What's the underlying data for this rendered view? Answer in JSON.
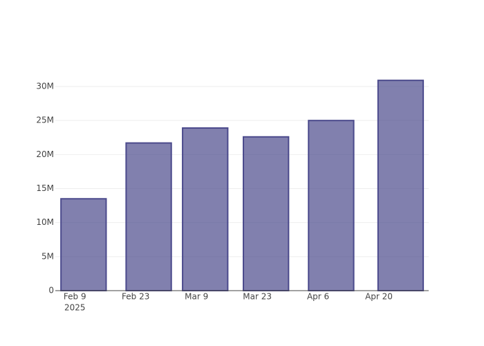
{
  "chart_data": {
    "type": "bar",
    "x": [
      "2025-02-11",
      "2025-02-26",
      "2025-03-11",
      "2025-03-25",
      "2025-04-09",
      "2025-04-25"
    ],
    "values": [
      13500000,
      21700000,
      23900000,
      22600000,
      25000000,
      30900000
    ],
    "color": "#4b4a8c",
    "xlim": [
      "2025-02-04T12:00Z",
      "2025-05-01T11:00Z"
    ],
    "xticks": [
      {
        "value": "2025-02-09",
        "label": [
          "Feb 9",
          "2025"
        ]
      },
      {
        "value": "2025-02-23",
        "label": [
          "Feb 23"
        ]
      },
      {
        "value": "2025-03-09",
        "label": [
          "Mar 9"
        ]
      },
      {
        "value": "2025-03-23",
        "label": [
          "Mar 23"
        ]
      },
      {
        "value": "2025-04-06",
        "label": [
          "Apr 6"
        ]
      },
      {
        "value": "2025-04-20",
        "label": [
          "Apr 20"
        ]
      }
    ],
    "ylim": [
      0,
      30000000
    ],
    "yticks": [
      0,
      {
        "value": 5000000,
        "label": "5M"
      },
      {
        "value": 10000000,
        "label": "10M"
      },
      {
        "value": 15000000,
        "label": "15M"
      },
      {
        "value": 20000000,
        "label": "20M"
      },
      {
        "value": 25000000,
        "label": "25M"
      },
      {
        "value": 30000000,
        "label": "30M"
      }
    ],
    "grid": true
  }
}
